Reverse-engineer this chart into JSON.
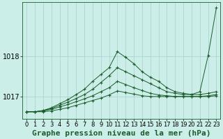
{
  "background_color": "#cceee8",
  "grid_color": "#aacccc",
  "line_color": "#1a5c2a",
  "title": "Graphe pression niveau de la mer (hPa)",
  "xlim": [
    -0.5,
    23.5
  ],
  "ylim": [
    1016.45,
    1019.35
  ],
  "yticks": [
    1017.0,
    1018.0
  ],
  "xticks": [
    0,
    1,
    2,
    3,
    4,
    5,
    6,
    7,
    8,
    9,
    10,
    11,
    12,
    13,
    14,
    15,
    16,
    17,
    18,
    19,
    20,
    21,
    22,
    23
  ],
  "series": [
    [
      1016.62,
      1016.62,
      1016.65,
      1016.72,
      1016.82,
      1016.92,
      1017.05,
      1017.18,
      1017.38,
      1017.55,
      1017.72,
      1018.12,
      1017.98,
      1017.82,
      1017.62,
      1017.48,
      1017.38,
      1017.22,
      1017.12,
      1017.08,
      1017.05,
      1017.12,
      1018.02,
      1019.22
    ],
    [
      1016.62,
      1016.62,
      1016.65,
      1016.7,
      1016.78,
      1016.86,
      1016.95,
      1017.05,
      1017.18,
      1017.35,
      1017.52,
      1017.72,
      1017.62,
      1017.52,
      1017.42,
      1017.32,
      1017.22,
      1017.12,
      1017.08,
      1017.05,
      1017.05,
      1017.05,
      1017.08,
      1017.12
    ],
    [
      1016.62,
      1016.62,
      1016.64,
      1016.68,
      1016.74,
      1016.8,
      1016.87,
      1016.94,
      1017.02,
      1017.12,
      1017.22,
      1017.38,
      1017.3,
      1017.22,
      1017.15,
      1017.08,
      1017.04,
      1017.02,
      1017.0,
      1017.0,
      1017.0,
      1017.0,
      1017.02,
      1017.05
    ],
    [
      1016.62,
      1016.62,
      1016.62,
      1016.64,
      1016.68,
      1016.72,
      1016.78,
      1016.84,
      1016.9,
      1016.96,
      1017.04,
      1017.14,
      1017.1,
      1017.06,
      1017.02,
      1017.0,
      1017.0,
      1017.0,
      1017.0,
      1017.0,
      1017.0,
      1017.0,
      1017.0,
      1017.02
    ]
  ],
  "title_fontsize": 8,
  "tick_fontsize": 6,
  "figsize": [
    3.2,
    2.0
  ],
  "dpi": 100
}
